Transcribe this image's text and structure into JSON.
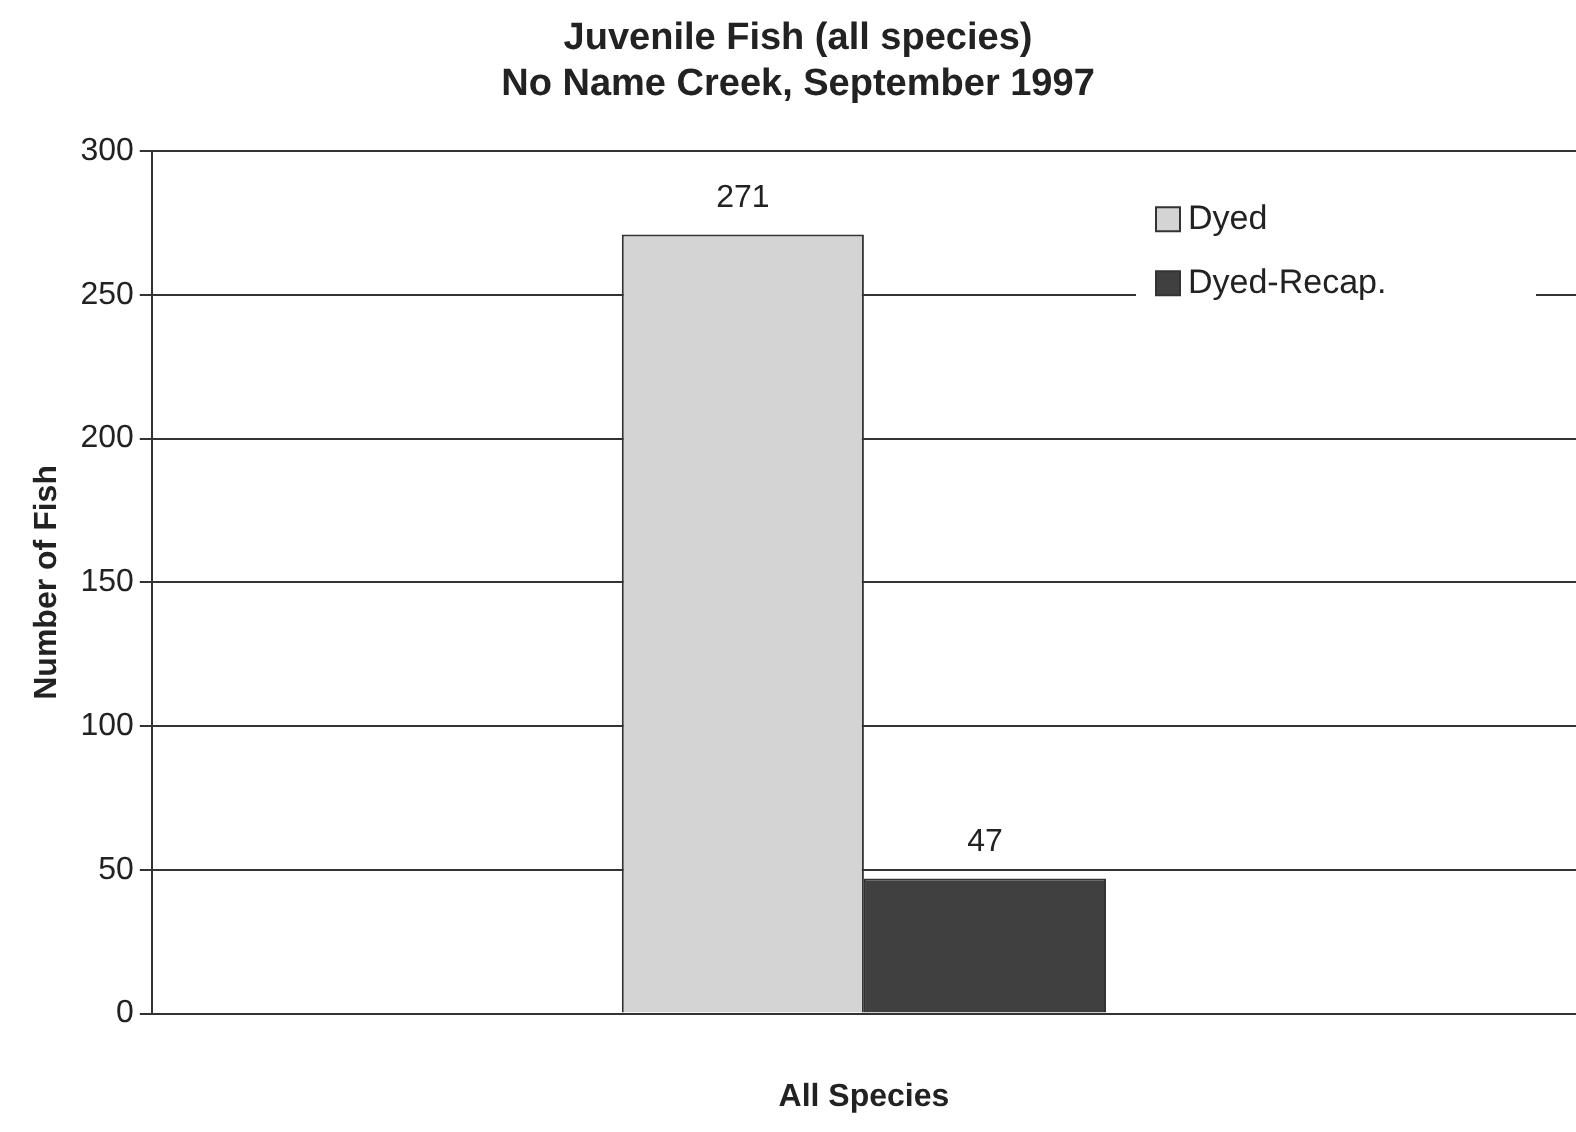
{
  "chart_data": {
    "type": "bar",
    "title": "Juvenile Fish (all species)\nNo Name Creek, September 1997",
    "xlabel": "All Species",
    "ylabel": "Number of Fish",
    "categories": [
      null
    ],
    "series": [
      {
        "name": "Dyed",
        "color": "#d4d4d4",
        "values": [
          271
        ]
      },
      {
        "name": "Dyed-Recap.",
        "color": "#404040",
        "values": [
          47
        ]
      }
    ],
    "ylim": [
      0,
      300
    ],
    "yticks": [
      0,
      50,
      100,
      150,
      200,
      250,
      300
    ],
    "grid": "y",
    "legend": "top right",
    "data_labels": true
  }
}
